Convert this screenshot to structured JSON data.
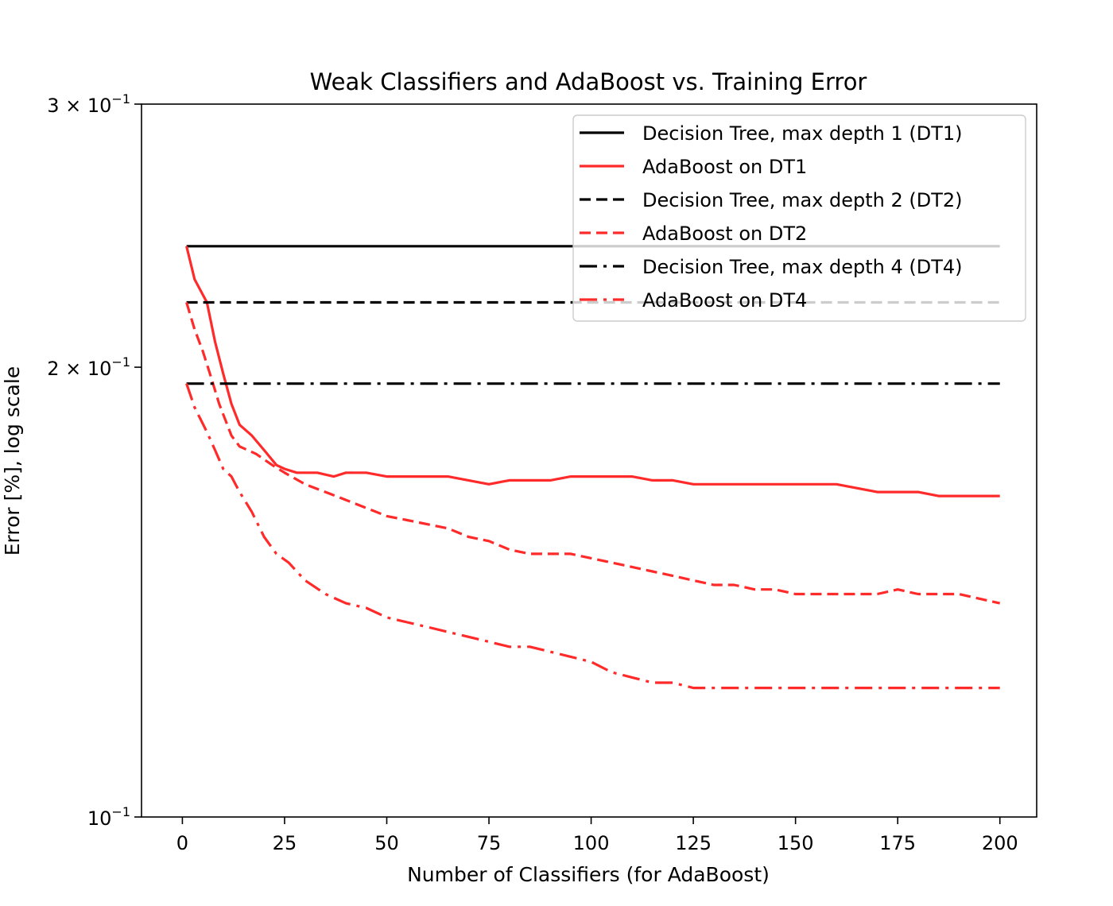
{
  "chart_data": {
    "type": "line",
    "title": "Weak Classifiers and AdaBoost vs. Training Error",
    "xlabel": "Number of Classifiers (for AdaBoost)",
    "ylabel": "Error [%], log scale",
    "y_scale": "log",
    "xlim": [
      -10,
      209
    ],
    "ylim": [
      0.1,
      0.3
    ],
    "grid": false,
    "legend_position": "top-right",
    "x_ticks": [
      0,
      25,
      50,
      75,
      100,
      125,
      150,
      175,
      200
    ],
    "x_tick_labels": [
      "0",
      "25",
      "50",
      "75",
      "100",
      "125",
      "150",
      "175",
      "200"
    ],
    "y_ticks": [
      0.1,
      0.2,
      0.3
    ],
    "y_tick_labels": [
      {
        "base": "10",
        "exp": "−1",
        "coef": ""
      },
      {
        "base": "10",
        "exp": "−1",
        "coef": "2 × "
      },
      {
        "base": "10",
        "exp": "−1",
        "coef": "3 × "
      }
    ],
    "series": [
      {
        "name": "Decision Tree, max depth 1 (DT1)",
        "color": "#000000",
        "style": "solid",
        "points": [
          [
            1,
            0.241
          ],
          [
            200,
            0.241
          ]
        ]
      },
      {
        "name": "AdaBoost on DT1",
        "color": "#ff2a2a",
        "style": "solid",
        "points": [
          [
            1,
            0.241
          ],
          [
            3,
            0.229
          ],
          [
            6,
            0.221
          ],
          [
            8,
            0.208
          ],
          [
            10,
            0.198
          ],
          [
            12,
            0.189
          ],
          [
            14,
            0.183
          ],
          [
            17,
            0.18
          ],
          [
            20,
            0.176
          ],
          [
            23,
            0.172
          ],
          [
            25,
            0.171
          ],
          [
            28,
            0.17
          ],
          [
            33,
            0.17
          ],
          [
            37,
            0.169
          ],
          [
            40,
            0.17
          ],
          [
            45,
            0.17
          ],
          [
            50,
            0.169
          ],
          [
            55,
            0.169
          ],
          [
            60,
            0.169
          ],
          [
            65,
            0.169
          ],
          [
            70,
            0.168
          ],
          [
            75,
            0.167
          ],
          [
            80,
            0.168
          ],
          [
            85,
            0.168
          ],
          [
            90,
            0.168
          ],
          [
            95,
            0.169
          ],
          [
            100,
            0.169
          ],
          [
            105,
            0.169
          ],
          [
            110,
            0.169
          ],
          [
            115,
            0.168
          ],
          [
            120,
            0.168
          ],
          [
            125,
            0.167
          ],
          [
            130,
            0.167
          ],
          [
            135,
            0.167
          ],
          [
            140,
            0.167
          ],
          [
            145,
            0.167
          ],
          [
            150,
            0.167
          ],
          [
            155,
            0.167
          ],
          [
            160,
            0.167
          ],
          [
            165,
            0.166
          ],
          [
            170,
            0.165
          ],
          [
            175,
            0.165
          ],
          [
            180,
            0.165
          ],
          [
            185,
            0.164
          ],
          [
            190,
            0.164
          ],
          [
            195,
            0.164
          ],
          [
            200,
            0.164
          ]
        ]
      },
      {
        "name": "Decision Tree, max depth 2 (DT2)",
        "color": "#000000",
        "style": "dashed",
        "points": [
          [
            1,
            0.221
          ],
          [
            200,
            0.221
          ]
        ]
      },
      {
        "name": "AdaBoost on DT2",
        "color": "#ff2a2a",
        "style": "dashed",
        "points": [
          [
            1,
            0.221
          ],
          [
            3,
            0.212
          ],
          [
            5,
            0.205
          ],
          [
            7,
            0.197
          ],
          [
            9,
            0.189
          ],
          [
            12,
            0.18
          ],
          [
            14,
            0.177
          ],
          [
            18,
            0.175
          ],
          [
            22,
            0.172
          ],
          [
            25,
            0.17
          ],
          [
            30,
            0.167
          ],
          [
            35,
            0.165
          ],
          [
            40,
            0.163
          ],
          [
            45,
            0.161
          ],
          [
            50,
            0.159
          ],
          [
            55,
            0.158
          ],
          [
            60,
            0.157
          ],
          [
            65,
            0.156
          ],
          [
            70,
            0.154
          ],
          [
            75,
            0.153
          ],
          [
            80,
            0.151
          ],
          [
            85,
            0.15
          ],
          [
            90,
            0.15
          ],
          [
            95,
            0.15
          ],
          [
            100,
            0.149
          ],
          [
            105,
            0.148
          ],
          [
            110,
            0.147
          ],
          [
            115,
            0.146
          ],
          [
            120,
            0.145
          ],
          [
            125,
            0.144
          ],
          [
            130,
            0.143
          ],
          [
            135,
            0.143
          ],
          [
            140,
            0.142
          ],
          [
            145,
            0.142
          ],
          [
            150,
            0.141
          ],
          [
            155,
            0.141
          ],
          [
            160,
            0.141
          ],
          [
            165,
            0.141
          ],
          [
            170,
            0.141
          ],
          [
            175,
            0.142
          ],
          [
            180,
            0.141
          ],
          [
            185,
            0.141
          ],
          [
            190,
            0.141
          ],
          [
            195,
            0.14
          ],
          [
            200,
            0.139
          ]
        ]
      },
      {
        "name": "Decision Tree, max depth 4 (DT4)",
        "color": "#000000",
        "style": "dashdot",
        "points": [
          [
            1,
            0.195
          ],
          [
            200,
            0.195
          ]
        ]
      },
      {
        "name": "AdaBoost on DT4",
        "color": "#ff2a2a",
        "style": "dashdot",
        "points": [
          [
            1,
            0.195
          ],
          [
            3,
            0.188
          ],
          [
            6,
            0.181
          ],
          [
            8,
            0.176
          ],
          [
            10,
            0.171
          ],
          [
            12,
            0.169
          ],
          [
            14,
            0.165
          ],
          [
            17,
            0.16
          ],
          [
            20,
            0.154
          ],
          [
            23,
            0.15
          ],
          [
            26,
            0.148
          ],
          [
            30,
            0.144
          ],
          [
            35,
            0.141
          ],
          [
            40,
            0.139
          ],
          [
            45,
            0.138
          ],
          [
            50,
            0.136
          ],
          [
            55,
            0.135
          ],
          [
            60,
            0.134
          ],
          [
            65,
            0.133
          ],
          [
            70,
            0.132
          ],
          [
            75,
            0.131
          ],
          [
            80,
            0.13
          ],
          [
            85,
            0.13
          ],
          [
            90,
            0.129
          ],
          [
            95,
            0.128
          ],
          [
            100,
            0.127
          ],
          [
            105,
            0.125
          ],
          [
            110,
            0.124
          ],
          [
            115,
            0.123
          ],
          [
            120,
            0.123
          ],
          [
            125,
            0.122
          ],
          [
            130,
            0.122
          ],
          [
            140,
            0.122
          ],
          [
            150,
            0.122
          ],
          [
            160,
            0.122
          ],
          [
            170,
            0.122
          ],
          [
            180,
            0.122
          ],
          [
            190,
            0.122
          ],
          [
            200,
            0.122
          ]
        ]
      }
    ]
  }
}
